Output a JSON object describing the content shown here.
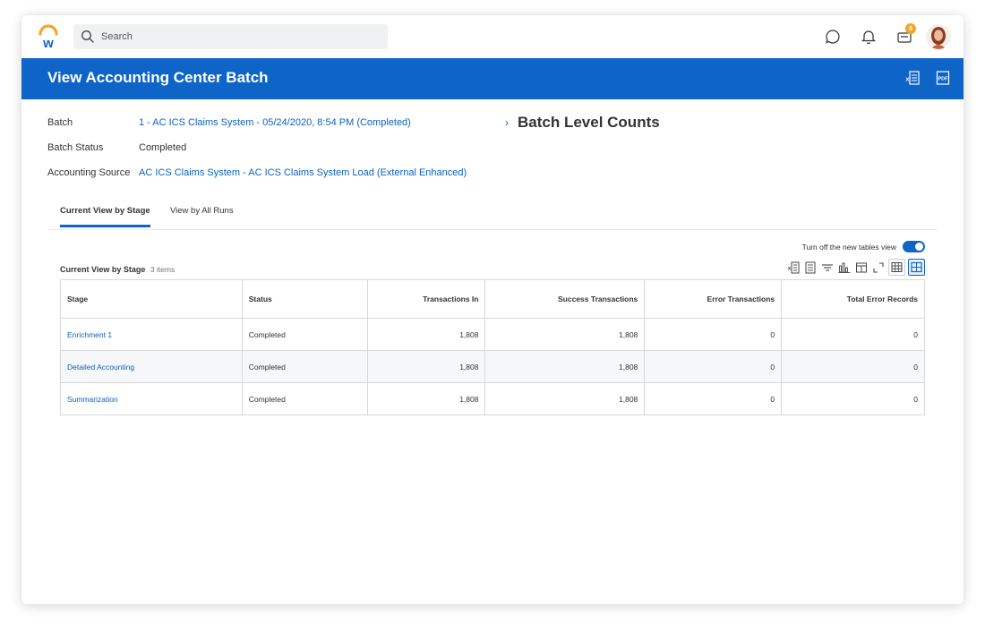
{
  "search": {
    "placeholder": "Search"
  },
  "notifications": {
    "inbox_badge": "8"
  },
  "page": {
    "title": "View Accounting Center Batch"
  },
  "fields": [
    {
      "label": "Batch",
      "value": "1 - AC ICS Claims System - 05/24/2020, 8:54 PM (Completed)",
      "is_link": true
    },
    {
      "label": "Batch Status",
      "value": "Completed",
      "is_link": false
    },
    {
      "label": "Accounting Source",
      "value": "AC ICS Claims System - AC ICS Claims System Load (External Enhanced)",
      "is_link": true
    }
  ],
  "batch_level_counts": {
    "title": "Batch Level Counts"
  },
  "tabs": [
    {
      "label": "Current View by Stage",
      "active": true
    },
    {
      "label": "View by All Runs",
      "active": false
    }
  ],
  "table_view_toggle": {
    "label": "Turn off the new tables view",
    "on": true
  },
  "table": {
    "caption": "Current View by Stage",
    "count": "3 items",
    "columns": [
      "Stage",
      "Status",
      "Transactions In",
      "Success Transactions",
      "Error Transactions",
      "Total Error Records"
    ],
    "rows": [
      [
        "Enrichment 1",
        "Completed",
        "1,808",
        "1,808",
        "0",
        "0"
      ],
      [
        "Detailed Accounting",
        "Completed",
        "1,808",
        "1,808",
        "0",
        "0"
      ],
      [
        "Summarization",
        "Completed",
        "1,808",
        "1,808",
        "0",
        "0"
      ]
    ]
  },
  "colors": {
    "brand_blue": "#0f64c8",
    "link": "#0b62c4",
    "badge": "#f4a622",
    "logo_orange": "#f5a623"
  },
  "icons": {
    "top": [
      "workday-logo-icon",
      "search-icon",
      "chat-icon",
      "bell-icon",
      "inbox-icon",
      "avatar"
    ],
    "header": [
      "export-excel-icon",
      "export-pdf-icon"
    ],
    "table_tools": [
      "export-excel-icon",
      "print-icon",
      "filter-icon",
      "chart-icon",
      "column-layout-icon",
      "fullscreen-icon",
      "list-view-icon",
      "grid-view-icon"
    ]
  }
}
